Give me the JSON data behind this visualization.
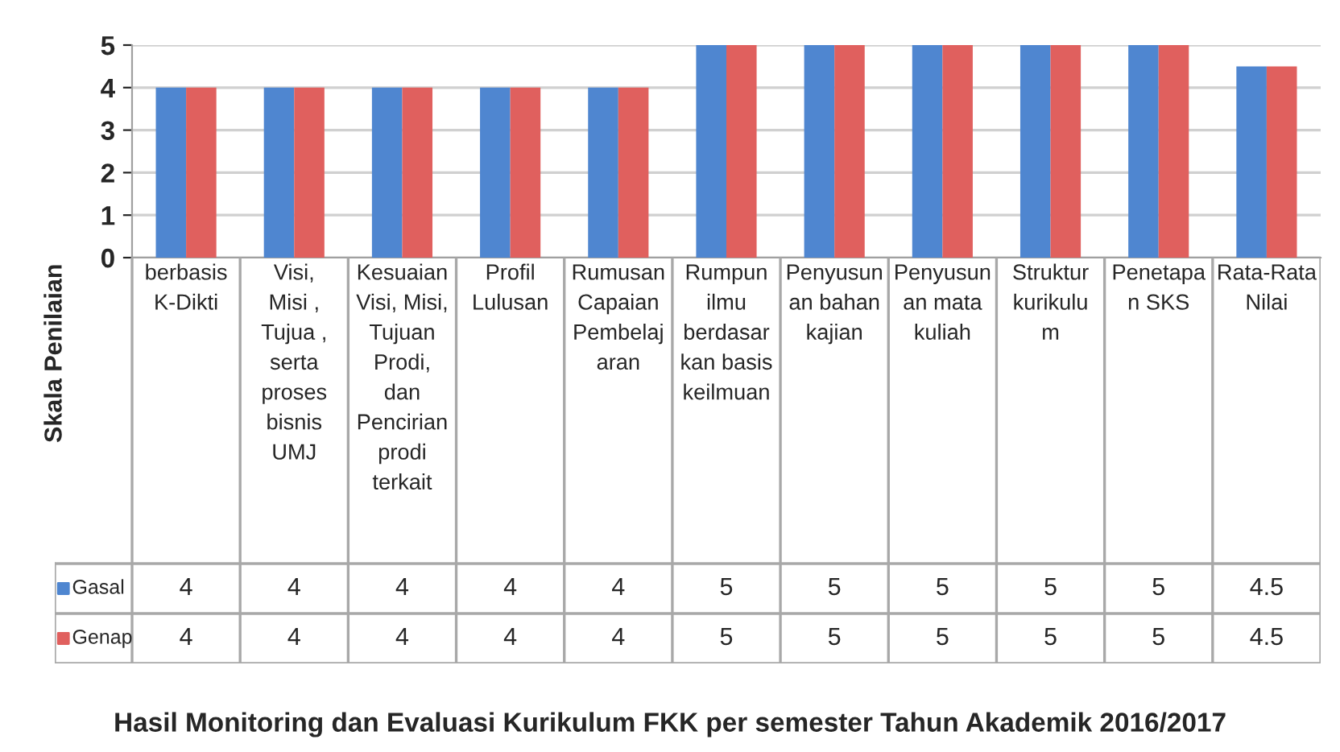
{
  "chart_data": {
    "type": "bar",
    "title": "Hasil Monitoring dan Evaluasi Kurikulum FKK per semester Tahun Akademik 2016/2017",
    "ylabel": "Skala Penilaian",
    "categories": [
      "berbasis\nK-Dikti",
      "Visi,\nMisi ,\nTujua ,\nserta\nproses\nbisnis\nUMJ",
      "Kesuaian\nVisi, Misi,\nTujuan\nProdi,\ndan\nPencirian\nprodi\nterkait",
      "Profil\nLulusan",
      "Rumusan\nCapaian\nPembelaj\naran",
      "Rumpun\nilmu\nberdasar\nkan basis\nkeilmuan",
      "Penyusun\nan bahan\nkajian",
      "Penyusun\nan mata\nkuliah",
      "Struktur\nkurikulu\nm",
      "Penetapa\nn SKS",
      "Rata-Rata\nNilai"
    ],
    "series": [
      {
        "name": "Gasal",
        "color": "#4f86d0",
        "values": [
          4,
          4,
          4,
          4,
          4,
          5,
          5,
          5,
          5,
          5,
          4.5
        ]
      },
      {
        "name": "Genap",
        "color": "#e0605e",
        "values": [
          4,
          4,
          4,
          4,
          4,
          5,
          5,
          5,
          5,
          5,
          4.5
        ]
      }
    ],
    "ylim": [
      0,
      5
    ],
    "yticks": [
      0,
      1,
      2,
      3,
      4,
      5
    ],
    "grid": "y",
    "data_labels": true,
    "legend": "bottom left"
  }
}
